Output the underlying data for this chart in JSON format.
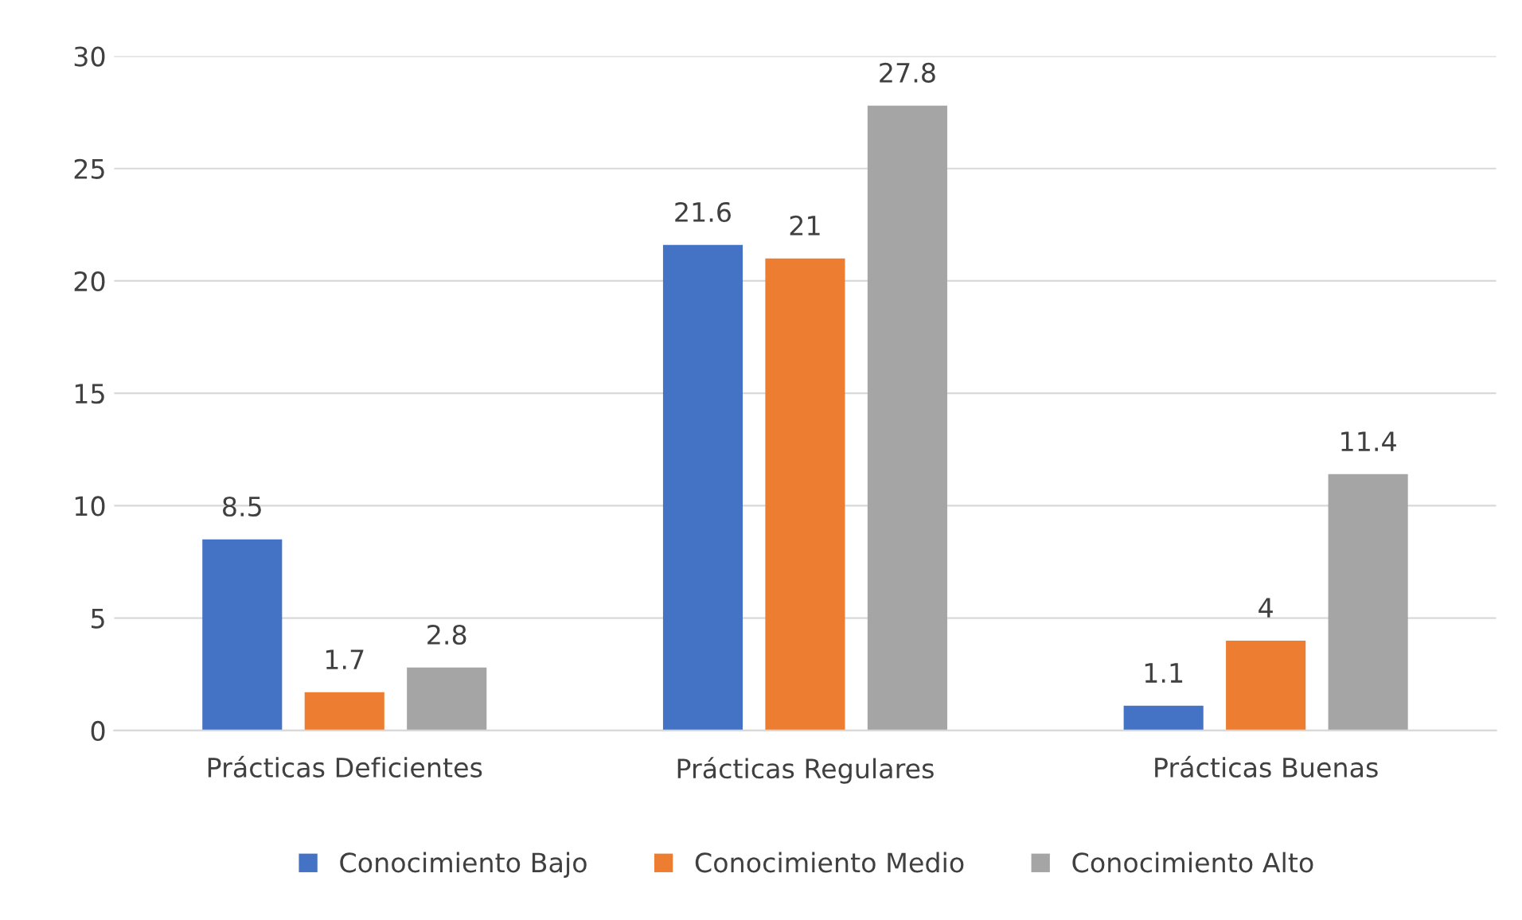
{
  "chart_data": {
    "type": "bar",
    "categories": [
      "Prácticas Deficientes",
      "Prácticas Regulares",
      "Prácticas Buenas"
    ],
    "series": [
      {
        "name": "Conocimiento Bajo",
        "color": "#4472c4",
        "values": [
          8.5,
          21.6,
          1.1
        ]
      },
      {
        "name": "Conocimiento Medio",
        "color": "#ed7d31",
        "values": [
          1.7,
          21,
          4
        ]
      },
      {
        "name": "Conocimiento Alto",
        "color": "#a5a5a5",
        "values": [
          2.8,
          27.8,
          11.4
        ]
      }
    ],
    "ylim": [
      0,
      30
    ],
    "yticks": [
      0,
      5,
      10,
      15,
      20,
      25,
      30
    ],
    "grid": "y",
    "legend": "bottom",
    "data_labels": true
  }
}
